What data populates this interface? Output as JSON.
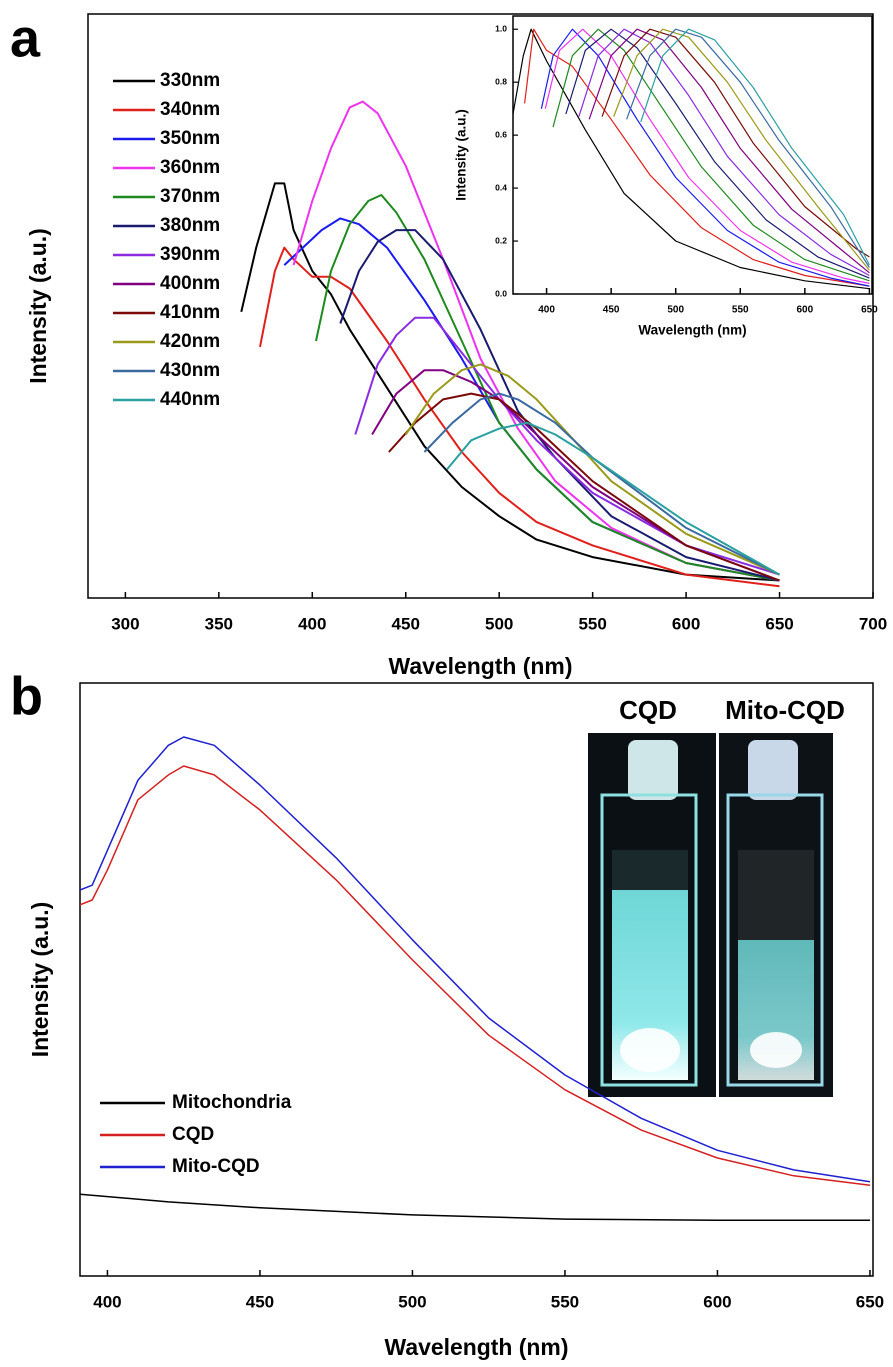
{
  "chart_data": [
    {
      "type": "line",
      "panel_label": "a",
      "xlabel": "Wavelength (nm)",
      "ylabel": "Intensity (a.u.)",
      "xlim": [
        280,
        700
      ],
      "xticks": [
        300,
        350,
        400,
        450,
        500,
        550,
        600,
        650,
        700
      ],
      "ylim": [
        0,
        100
      ],
      "legend": "upper left",
      "series": [
        {
          "name": "330nm",
          "color": "#000000",
          "x": [
            362,
            370,
            380,
            385,
            390,
            400,
            410,
            420,
            440,
            460,
            480,
            500,
            520,
            550,
            600,
            650
          ],
          "values": [
            49,
            60,
            71,
            71,
            63,
            56,
            52,
            46,
            36,
            26,
            19,
            14,
            10,
            7,
            4,
            3
          ]
        },
        {
          "name": "340nm",
          "color": "#e0201a",
          "x": [
            372,
            380,
            385,
            390,
            400,
            410,
            420,
            440,
            460,
            480,
            500,
            520,
            550,
            600,
            650
          ],
          "values": [
            43,
            56,
            60,
            58,
            55,
            55,
            53,
            44,
            34,
            25,
            18,
            13,
            9,
            4,
            2
          ]
        },
        {
          "name": "350nm",
          "color": "#1b1bf0",
          "x": [
            385,
            395,
            405,
            415,
            425,
            440,
            460,
            480,
            500,
            520,
            550,
            600,
            650
          ],
          "values": [
            57,
            60,
            63,
            65,
            64,
            60,
            51,
            41,
            30,
            22,
            13,
            6,
            3
          ]
        },
        {
          "name": "360nm",
          "color": "#ee33ee",
          "x": [
            390,
            400,
            410,
            420,
            427,
            435,
            450,
            470,
            490,
            510,
            530,
            560,
            600,
            650
          ],
          "values": [
            57,
            68,
            77,
            84,
            85,
            83,
            74,
            58,
            41,
            29,
            20,
            12,
            6,
            3
          ]
        },
        {
          "name": "370nm",
          "color": "#1e8a1e",
          "x": [
            402,
            410,
            420,
            430,
            437,
            445,
            460,
            480,
            500,
            520,
            550,
            600,
            650
          ],
          "values": [
            44,
            56,
            64,
            68,
            69,
            66,
            58,
            44,
            30,
            22,
            13,
            6,
            3
          ]
        },
        {
          "name": "380nm",
          "color": "#1a1a70",
          "x": [
            415,
            425,
            435,
            445,
            455,
            470,
            490,
            510,
            530,
            560,
            600,
            650
          ],
          "values": [
            47,
            56,
            61,
            63,
            63,
            58,
            46,
            32,
            24,
            14,
            7,
            3
          ]
        },
        {
          "name": "390nm",
          "color": "#8a2be2",
          "x": [
            423,
            435,
            445,
            455,
            465,
            480,
            500,
            520,
            550,
            600,
            650
          ],
          "values": [
            28,
            40,
            45,
            48,
            48,
            42,
            34,
            27,
            18,
            9,
            4
          ]
        },
        {
          "name": "400nm",
          "color": "#800080",
          "x": [
            432,
            445,
            460,
            470,
            485,
            500,
            520,
            550,
            600,
            650
          ],
          "values": [
            28,
            35,
            39,
            39,
            37,
            34,
            28,
            19,
            9,
            3
          ]
        },
        {
          "name": "410nm",
          "color": "#7a0a0a",
          "x": [
            441,
            455,
            470,
            485,
            500,
            520,
            550,
            600,
            650
          ],
          "values": [
            25,
            30,
            34,
            35,
            34,
            29,
            20,
            9,
            3
          ]
        },
        {
          "name": "420nm",
          "color": "#9a9a1a",
          "x": [
            450,
            465,
            480,
            490,
            505,
            520,
            540,
            560,
            600,
            650
          ],
          "values": [
            28,
            35,
            39,
            40,
            38,
            34,
            27,
            20,
            11,
            4
          ]
        },
        {
          "name": "430nm",
          "color": "#3a6aa0",
          "x": [
            460,
            475,
            490,
            500,
            510,
            530,
            550,
            600,
            650
          ],
          "values": [
            25,
            30,
            34,
            35,
            34,
            30,
            24,
            12,
            4
          ]
        },
        {
          "name": "440nm",
          "color": "#2aa0a0",
          "x": [
            472,
            485,
            500,
            515,
            530,
            550,
            600,
            650
          ],
          "values": [
            22,
            27,
            29,
            30,
            28,
            24,
            13,
            4
          ]
        }
      ]
    },
    {
      "type": "line",
      "xlabel": "Wavelength (nm)",
      "ylabel": "Intensity (a.u.)",
      "xlim": [
        374,
        652
      ],
      "xticks": [
        400,
        450,
        500,
        550,
        600,
        650
      ],
      "ylim": [
        0,
        1.05
      ],
      "yticks": [
        {
          "value": 0,
          "label": "0.0"
        },
        0.2,
        0.4,
        0.6,
        0.8,
        {
          "value": 1,
          "label": "1.0"
        }
      ],
      "series": [
        {
          "color": "#000000",
          "x": [
            374,
            382,
            388,
            400,
            430,
            460,
            500,
            550,
            600,
            650
          ],
          "values": [
            0.68,
            0.9,
            1.0,
            0.88,
            0.62,
            0.38,
            0.2,
            0.1,
            0.05,
            0.02
          ]
        },
        {
          "color": "#e0201a",
          "x": [
            383,
            390,
            400,
            420,
            450,
            480,
            520,
            560,
            600,
            650
          ],
          "values": [
            0.72,
            1.0,
            0.92,
            0.86,
            0.66,
            0.45,
            0.25,
            0.13,
            0.07,
            0.03
          ]
        },
        {
          "color": "#1b1bf0",
          "x": [
            396,
            405,
            420,
            440,
            470,
            500,
            540,
            580,
            620,
            650
          ],
          "values": [
            0.7,
            0.9,
            1.0,
            0.9,
            0.66,
            0.44,
            0.24,
            0.12,
            0.06,
            0.03
          ]
        },
        {
          "color": "#ee33ee",
          "x": [
            399,
            410,
            428,
            450,
            480,
            510,
            550,
            590,
            630,
            650
          ],
          "values": [
            0.7,
            0.92,
            1.0,
            0.9,
            0.66,
            0.44,
            0.24,
            0.12,
            0.06,
            0.04
          ]
        },
        {
          "color": "#1e8a1e",
          "x": [
            405,
            420,
            440,
            460,
            490,
            520,
            560,
            600,
            650
          ],
          "values": [
            0.63,
            0.9,
            1.0,
            0.92,
            0.7,
            0.48,
            0.26,
            0.13,
            0.05
          ]
        },
        {
          "color": "#1a1a70",
          "x": [
            415,
            430,
            450,
            470,
            500,
            530,
            570,
            610,
            650
          ],
          "values": [
            0.68,
            0.92,
            1.0,
            0.93,
            0.72,
            0.5,
            0.28,
            0.14,
            0.06
          ]
        },
        {
          "color": "#8a2be2",
          "x": [
            425,
            440,
            460,
            480,
            510,
            540,
            580,
            620,
            650
          ],
          "values": [
            0.67,
            0.9,
            1.0,
            0.95,
            0.75,
            0.52,
            0.3,
            0.15,
            0.07
          ]
        },
        {
          "color": "#800080",
          "x": [
            433,
            450,
            470,
            490,
            520,
            550,
            590,
            630,
            650
          ],
          "values": [
            0.66,
            0.9,
            1.0,
            0.96,
            0.78,
            0.55,
            0.32,
            0.16,
            0.08
          ]
        },
        {
          "color": "#7a0a0a",
          "x": [
            443,
            460,
            480,
            500,
            530,
            560,
            600,
            640,
            650
          ],
          "values": [
            0.67,
            0.9,
            1.0,
            0.97,
            0.8,
            0.57,
            0.33,
            0.17,
            0.14
          ]
        },
        {
          "color": "#9a9a1a",
          "x": [
            452,
            470,
            490,
            510,
            540,
            570,
            610,
            650
          ],
          "values": [
            0.67,
            0.9,
            1.0,
            0.97,
            0.8,
            0.58,
            0.33,
            0.09
          ]
        },
        {
          "color": "#3a6aa0",
          "x": [
            462,
            480,
            500,
            520,
            550,
            580,
            620,
            650
          ],
          "values": [
            0.66,
            0.9,
            1.0,
            0.97,
            0.8,
            0.58,
            0.33,
            0.1
          ]
        },
        {
          "color": "#2aa0a0",
          "x": [
            473,
            490,
            510,
            530,
            560,
            590,
            630,
            650
          ],
          "values": [
            0.65,
            0.9,
            1.0,
            0.96,
            0.78,
            0.55,
            0.3,
            0.11
          ]
        }
      ]
    },
    {
      "type": "line",
      "panel_label": "b",
      "xlabel": "Wavelength (nm)",
      "ylabel": "Intensity (a.u.)",
      "xlim": [
        391,
        651
      ],
      "xticks": [
        400,
        450,
        500,
        550,
        600,
        650
      ],
      "ylim": [
        0,
        100
      ],
      "legend": "lower left",
      "annotations": [
        "CQD",
        "Mito-CQD"
      ],
      "series": [
        {
          "name": "Mitochondria",
          "color": "#000000",
          "x": [
            391,
            420,
            450,
            500,
            550,
            600,
            650
          ],
          "values": [
            13.8,
            12.5,
            11.5,
            10.3,
            9.6,
            9.4,
            9.4
          ]
        },
        {
          "name": "CQD",
          "color": "#d42020",
          "x": [
            391,
            395,
            400,
            410,
            420,
            425,
            435,
            450,
            475,
            500,
            525,
            550,
            575,
            600,
            625,
            650
          ],
          "values": [
            62.6,
            63.4,
            68.5,
            80.3,
            84.5,
            86,
            84.5,
            78.6,
            66.8,
            53.3,
            40.6,
            31.4,
            24.6,
            19.9,
            16.9,
            15.3
          ]
        },
        {
          "name": "Mito-CQD",
          "color": "#2020d0",
          "x": [
            391,
            395,
            400,
            410,
            420,
            425,
            435,
            450,
            475,
            500,
            525,
            550,
            575,
            600,
            625,
            650
          ],
          "values": [
            65.1,
            65.9,
            71.8,
            83.6,
            89.5,
            90.9,
            89.5,
            82.8,
            70.5,
            56.7,
            43.5,
            33.9,
            26.6,
            21.2,
            17.9,
            15.9
          ]
        }
      ]
    }
  ]
}
